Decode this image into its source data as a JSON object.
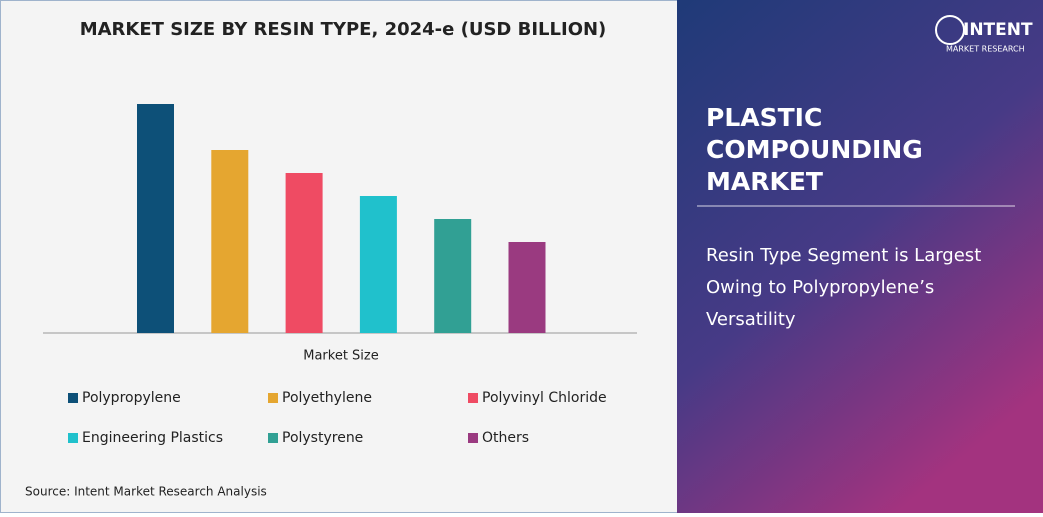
{
  "chart_data": {
    "type": "bar",
    "title": "MARKET SIZE BY RESIN TYPE, 2024-e (USD BILLION)",
    "categories": [
      "Market Size"
    ],
    "series": [
      {
        "name": "Polypropylene",
        "color": "#0d5078",
        "values": [
          229
        ]
      },
      {
        "name": "Polyethylene",
        "color": "#e5a630",
        "values": [
          183
        ]
      },
      {
        "name": "Polyvinyl Chloride",
        "color": "#ef4b63",
        "values": [
          160
        ]
      },
      {
        "name": "Engineering Plastics",
        "color": "#20c1cc",
        "values": [
          137
        ]
      },
      {
        "name": "Polystyrene",
        "color": "#31a094",
        "values": [
          114
        ]
      },
      {
        "name": "Others",
        "color": "#9a3a80",
        "values": [
          91
        ]
      }
    ],
    "ylim": [
      0,
      250
    ]
  },
  "source": "Source: Intent Market Research Analysis",
  "panel": {
    "title_lines": [
      "PLASTIC",
      "COMPOUNDING",
      "MARKET"
    ],
    "text_lines": [
      "Resin Type Segment is Largest",
      "Owing to Polypropylene’s",
      "Versatility"
    ]
  },
  "logo": {
    "name": "INTENT",
    "tagline": "MARKET RESEARCH"
  }
}
